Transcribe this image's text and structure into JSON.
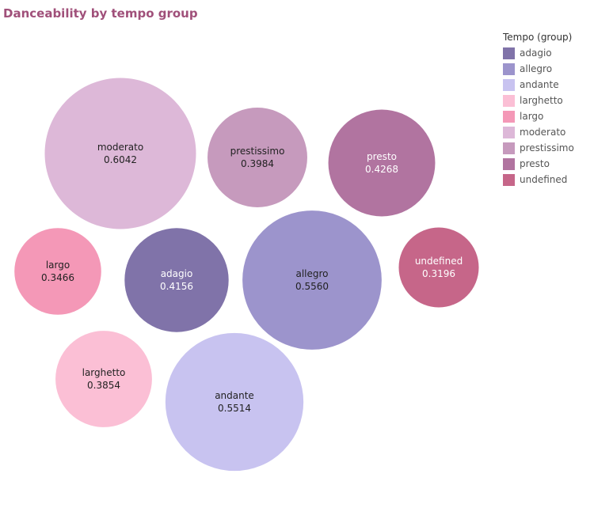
{
  "title": "Danceability by tempo group",
  "legend": {
    "title": "Tempo (group)",
    "items": [
      {
        "label": "adagio",
        "color": "#8073a9"
      },
      {
        "label": "allegro",
        "color": "#9c94cc"
      },
      {
        "label": "andante",
        "color": "#c8c3f0"
      },
      {
        "label": "larghetto",
        "color": "#fbbfd5"
      },
      {
        "label": "largo",
        "color": "#f498b7"
      },
      {
        "label": "moderato",
        "color": "#ddb8d8"
      },
      {
        "label": "prestissimo",
        "color": "#c69abd"
      },
      {
        "label": "presto",
        "color": "#b174a0"
      },
      {
        "label": "undefined",
        "color": "#c66689"
      }
    ]
  },
  "chart_data": {
    "type": "bubble",
    "title": "Danceability by tempo group",
    "legend_title": "Tempo (group)",
    "legend_position": "top-right",
    "series": [
      {
        "name": "adagio",
        "value": 0.4156,
        "label": "0.4156",
        "color": "#8073a9",
        "text_color": "#ffffff"
      },
      {
        "name": "allegro",
        "value": 0.556,
        "label": "0.5560",
        "color": "#9c94cc",
        "text_color": "#222222"
      },
      {
        "name": "andante",
        "value": 0.5514,
        "label": "0.5514",
        "color": "#c8c3f0",
        "text_color": "#222222"
      },
      {
        "name": "larghetto",
        "value": 0.3854,
        "label": "0.3854",
        "color": "#fbbfd5",
        "text_color": "#222222"
      },
      {
        "name": "largo",
        "value": 0.3466,
        "label": "0.3466",
        "color": "#f498b7",
        "text_color": "#222222"
      },
      {
        "name": "moderato",
        "value": 0.6042,
        "label": "0.6042",
        "color": "#ddb8d8",
        "text_color": "#222222"
      },
      {
        "name": "prestissimo",
        "value": 0.3984,
        "label": "0.3984",
        "color": "#c69abd",
        "text_color": "#222222"
      },
      {
        "name": "presto",
        "value": 0.4268,
        "label": "0.4268",
        "color": "#b174a0",
        "text_color": "#ffffff"
      },
      {
        "name": "undefined",
        "value": 0.3196,
        "label": "0.3196",
        "color": "#c66689",
        "text_color": "#ffffff"
      }
    ]
  }
}
